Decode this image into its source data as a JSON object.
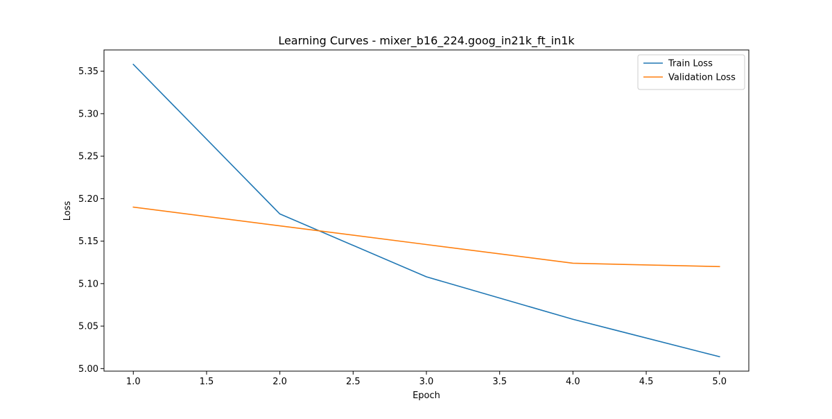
{
  "chart_data": {
    "type": "line",
    "title": "Learning Curves - mixer_b16_224.goog_in21k_ft_in1k",
    "xlabel": "Epoch",
    "ylabel": "Loss",
    "x": [
      1,
      2,
      3,
      4,
      5
    ],
    "xlim": [
      0.8,
      5.2
    ],
    "ylim": [
      4.997,
      5.375
    ],
    "xticks": [
      1.0,
      1.5,
      2.0,
      2.5,
      3.0,
      3.5,
      4.0,
      4.5,
      5.0
    ],
    "xtick_labels": [
      "1.0",
      "1.5",
      "2.0",
      "2.5",
      "3.0",
      "3.5",
      "4.0",
      "4.5",
      "5.0"
    ],
    "yticks": [
      5.0,
      5.05,
      5.1,
      5.15,
      5.2,
      5.25,
      5.3,
      5.35
    ],
    "ytick_labels": [
      "5.00",
      "5.05",
      "5.10",
      "5.15",
      "5.20",
      "5.25",
      "5.30",
      "5.35"
    ],
    "grid": false,
    "legend_position": "top-right",
    "series": [
      {
        "name": "Train Loss",
        "color": "#1f77b4",
        "values": [
          5.358,
          5.182,
          5.108,
          5.058,
          5.014
        ]
      },
      {
        "name": "Validation Loss",
        "color": "#ff7f0e",
        "values": [
          5.19,
          5.168,
          5.146,
          5.124,
          5.12
        ]
      }
    ]
  }
}
